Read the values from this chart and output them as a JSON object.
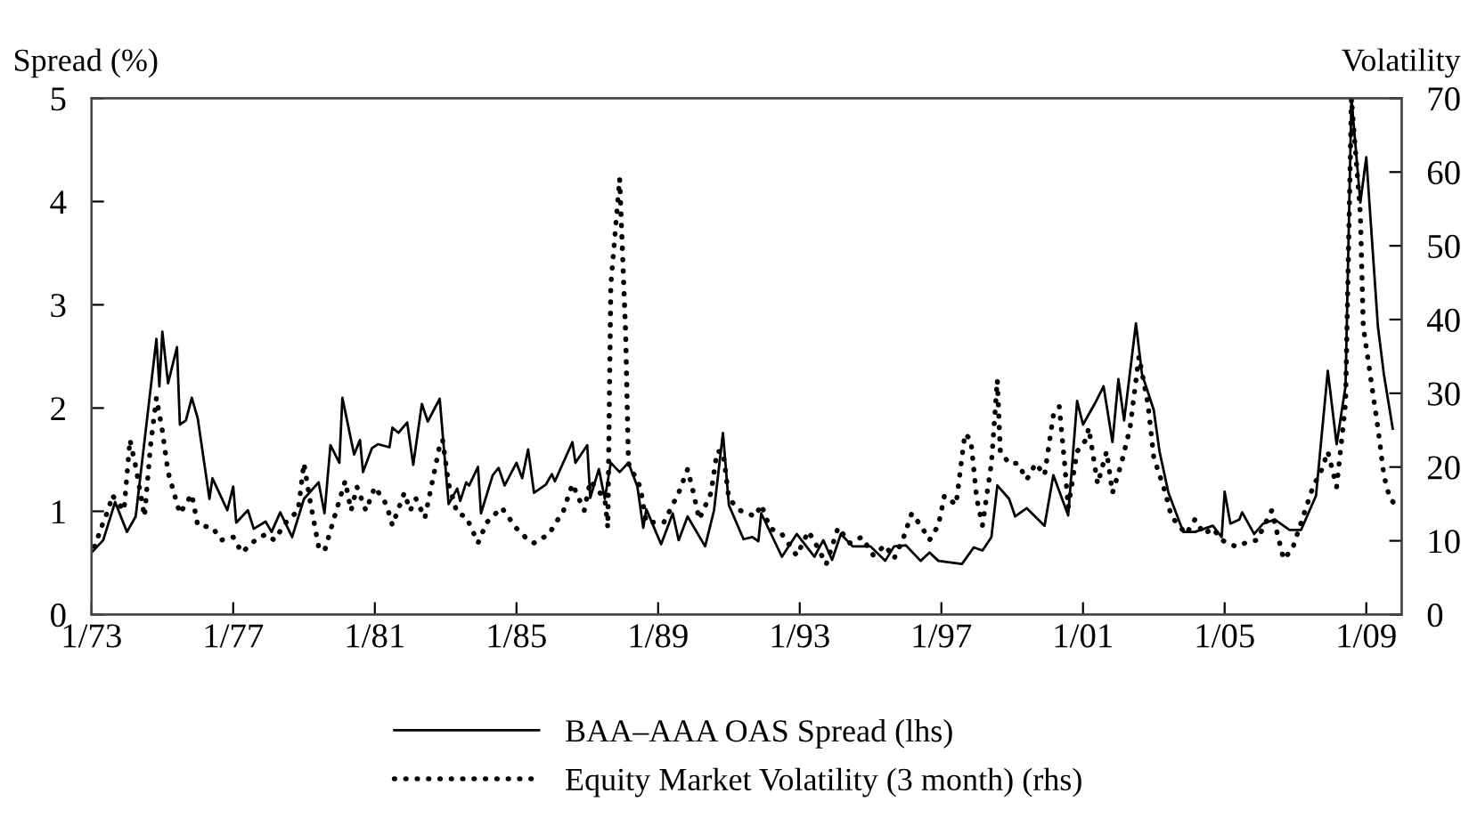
{
  "chart_data": {
    "type": "line",
    "ylabel": "Spread (%)",
    "y2label": "Volatility",
    "xlim": [
      "1973-01",
      "2010-01"
    ],
    "xticks": [
      {
        "value": "1973-01",
        "label": "1/73"
      },
      {
        "value": "1977-01",
        "label": "1/77"
      },
      {
        "value": "1981-01",
        "label": "1/81"
      },
      {
        "value": "1985-01",
        "label": "1/85"
      },
      {
        "value": "1989-01",
        "label": "1/89"
      },
      {
        "value": "1993-01",
        "label": "1/93"
      },
      {
        "value": "1997-01",
        "label": "1/97"
      },
      {
        "value": "2001-01",
        "label": "1/01"
      },
      {
        "value": "2005-01",
        "label": "1/05"
      },
      {
        "value": "2009-01",
        "label": "1/09"
      }
    ],
    "ylim": [
      0,
      5
    ],
    "yticks": [
      0,
      1,
      2,
      3,
      4,
      5
    ],
    "y2lim": [
      0,
      70
    ],
    "y2ticks": [
      0,
      10,
      20,
      30,
      40,
      50,
      60,
      70
    ],
    "grid": false,
    "legend": "bottom",
    "series": [
      {
        "name": "BAA–AAA OAS Spread (lhs)",
        "color": "#000000",
        "line_style": "solid",
        "x": [
          "1973-01",
          "1973-05",
          "1973-09",
          "1974-01",
          "1974-04",
          "1974-11",
          "1974-12",
          "1975-01",
          "1975-03",
          "1975-06",
          "1975-07",
          "1975-09",
          "1975-11",
          "1976-01",
          "1976-05",
          "1976-06",
          "1976-11",
          "1977-01",
          "1977-02",
          "1977-06",
          "1977-08",
          "1977-12",
          "1978-02",
          "1978-05",
          "1978-09",
          "1979-01",
          "1979-06",
          "1979-08",
          "1979-10",
          "1980-01",
          "1980-02",
          "1980-06",
          "1980-08",
          "1980-09",
          "1980-12",
          "1981-02",
          "1981-06",
          "1981-07",
          "1981-09",
          "1981-12",
          "1982-02",
          "1982-05",
          "1982-07",
          "1982-11",
          "1983-02",
          "1983-05",
          "1983-06",
          "1983-08",
          "1983-09",
          "1983-12",
          "1984-01",
          "1984-05",
          "1984-07",
          "1984-09",
          "1985-01",
          "1985-03",
          "1985-05",
          "1985-07",
          "1985-11",
          "1986-01",
          "1986-02",
          "1986-08",
          "1986-09",
          "1987-01",
          "1987-02",
          "1987-05",
          "1987-07",
          "1987-09",
          "1987-12",
          "1988-03",
          "1988-06",
          "1988-08",
          "1988-09",
          "1989-02",
          "1989-06",
          "1989-08",
          "1989-11",
          "1990-05",
          "1990-08",
          "1990-11",
          "1991-01",
          "1991-06",
          "1991-09",
          "1991-11",
          "1991-12",
          "1992-07",
          "1992-12",
          "1993-06",
          "1993-09",
          "1993-12",
          "1994-03",
          "1994-07",
          "1995-01",
          "1995-06",
          "1995-09",
          "1996-01",
          "1996-06",
          "1996-09",
          "1996-12",
          "1997-08",
          "1997-12",
          "1998-03",
          "1998-06",
          "1998-08",
          "1998-12",
          "1999-02",
          "1999-06",
          "1999-12",
          "2000-03",
          "2000-08",
          "2000-11",
          "2001-01",
          "2001-05",
          "2001-08",
          "2001-11",
          "2002-01",
          "2002-03",
          "2002-07",
          "2002-09",
          "2003-01",
          "2003-03",
          "2003-06",
          "2003-11",
          "2004-03",
          "2004-09",
          "2004-12",
          "2005-01",
          "2005-03",
          "2005-06",
          "2005-07",
          "2005-11",
          "2006-02",
          "2006-06",
          "2006-11",
          "2007-03",
          "2007-08",
          "2007-12",
          "2008-03",
          "2008-06",
          "2008-08",
          "2008-11",
          "2009-01",
          "2009-05",
          "2009-07",
          "2009-10"
        ],
        "values": [
          0.6,
          0.72,
          1.09,
          0.8,
          0.95,
          2.67,
          2.21,
          2.74,
          2.24,
          2.59,
          1.84,
          1.88,
          2.1,
          1.9,
          1.12,
          1.32,
          1.01,
          1.24,
          0.89,
          1.01,
          0.83,
          0.9,
          0.8,
          0.99,
          0.75,
          1.12,
          1.28,
          0.98,
          1.64,
          1.47,
          2.1,
          1.55,
          1.69,
          1.38,
          1.61,
          1.65,
          1.62,
          1.81,
          1.76,
          1.86,
          1.45,
          2.04,
          1.87,
          2.09,
          1.07,
          1.22,
          1.1,
          1.28,
          1.25,
          1.43,
          0.98,
          1.35,
          1.42,
          1.25,
          1.47,
          1.32,
          1.6,
          1.18,
          1.26,
          1.36,
          1.29,
          1.67,
          1.47,
          1.64,
          1.13,
          1.41,
          1.12,
          1.47,
          1.38,
          1.47,
          1.24,
          0.84,
          1.02,
          0.68,
          0.98,
          0.72,
          0.95,
          0.66,
          1.01,
          1.76,
          1.06,
          0.73,
          0.75,
          0.71,
          0.98,
          0.56,
          0.78,
          0.56,
          0.72,
          0.53,
          0.78,
          0.66,
          0.66,
          0.52,
          0.66,
          0.67,
          0.52,
          0.6,
          0.52,
          0.49,
          0.65,
          0.62,
          0.75,
          1.25,
          1.12,
          0.95,
          1.03,
          0.86,
          1.35,
          0.96,
          2.07,
          1.84,
          2.04,
          2.21,
          1.67,
          2.28,
          1.88,
          2.82,
          2.33,
          1.98,
          1.58,
          1.18,
          0.8,
          0.8,
          0.86,
          0.75,
          1.19,
          0.88,
          0.92,
          0.99,
          0.78,
          0.88,
          0.92,
          0.82,
          0.82,
          1.15,
          2.36,
          1.65,
          2.21,
          5.0,
          3.99,
          4.43,
          2.79,
          2.33,
          1.8
        ]
      },
      {
        "name": "Equity Market Volatility (3 month) (rhs)",
        "color": "#000000",
        "line_style": "dotted",
        "axis": "y2",
        "x": [
          "1973-02",
          "1973-05",
          "1973-07",
          "1973-08",
          "1973-12",
          "1974-02",
          "1974-04",
          "1974-07",
          "1974-09",
          "1974-11",
          "1975-01",
          "1975-03",
          "1975-07",
          "1975-11",
          "1976-01",
          "1976-06",
          "1976-09",
          "1977-01",
          "1977-04",
          "1977-08",
          "1977-12",
          "1978-03",
          "1978-07",
          "1978-11",
          "1979-01",
          "1979-03",
          "1979-06",
          "1979-08",
          "1979-12",
          "1980-03",
          "1980-05",
          "1980-07",
          "1980-10",
          "1981-01",
          "1981-05",
          "1981-07",
          "1981-11",
          "1982-01",
          "1982-03",
          "1982-06",
          "1982-11",
          "1982-12",
          "1983-02",
          "1983-05",
          "1983-08",
          "1983-12",
          "1984-03",
          "1984-08",
          "1985-01",
          "1985-05",
          "1985-07",
          "1985-12",
          "1986-05",
          "1986-08",
          "1986-12",
          "1987-02",
          "1987-07",
          "1987-08",
          "1987-09",
          "1987-12",
          "1988-02",
          "1988-03",
          "1988-07",
          "1988-09",
          "1989-03",
          "1989-06",
          "1989-08",
          "1989-11",
          "1990-01",
          "1990-03",
          "1990-07",
          "1990-09",
          "1990-11",
          "1991-01",
          "1991-05",
          "1991-10",
          "1991-12",
          "1992-03",
          "1992-07",
          "1992-12",
          "1993-04",
          "1993-07",
          "1993-10",
          "1994-02",
          "1994-06",
          "1994-10",
          "1995-02",
          "1995-06",
          "1995-09",
          "1995-12",
          "1996-03",
          "1996-06",
          "1996-09",
          "1996-12",
          "1997-02",
          "1997-06",
          "1997-09",
          "1997-11",
          "1998-01",
          "1998-03",
          "1998-06",
          "1998-08",
          "1998-09",
          "1998-12",
          "1999-03",
          "1999-06",
          "1999-09",
          "1999-12",
          "2000-03",
          "2000-05",
          "2000-07",
          "2000-08",
          "2000-11",
          "2001-02",
          "2001-03",
          "2001-06",
          "2001-09",
          "2001-11",
          "2002-02",
          "2002-05",
          "2002-08",
          "2002-11",
          "2003-01",
          "2003-05",
          "2003-07",
          "2003-12",
          "2004-03",
          "2004-06",
          "2004-09",
          "2004-12",
          "2005-05",
          "2005-08",
          "2005-12",
          "2006-05",
          "2006-09",
          "2006-12",
          "2007-03",
          "2007-07",
          "2007-10",
          "2007-12",
          "2008-03",
          "2008-06",
          "2008-08",
          "2008-11",
          "2008-12",
          "2009-02",
          "2009-05",
          "2009-07",
          "2009-09",
          "2009-11"
        ],
        "values": [
          9.2,
          12.5,
          14.5,
          16.2,
          14.1,
          23.7,
          20.1,
          13.3,
          22.9,
          29.4,
          24.9,
          19.3,
          13.7,
          16.3,
          12.1,
          11.8,
          10.1,
          10.5,
          8.4,
          9.9,
          10.9,
          10.1,
          12.5,
          14.1,
          20.5,
          15.7,
          9.2,
          8.6,
          14.1,
          18.1,
          14.1,
          17.3,
          14.1,
          17.3,
          14.9,
          12.1,
          16.5,
          14.1,
          15.7,
          13.1,
          22.9,
          23.7,
          17.7,
          13.7,
          13.3,
          9.7,
          12.5,
          14.5,
          11.7,
          10.1,
          9.7,
          10.9,
          14.1,
          17.7,
          14.1,
          18.1,
          15.7,
          11.8,
          44.7,
          59.1,
          38.2,
          20.5,
          17.3,
          12.5,
          12.5,
          14.9,
          16.5,
          19.7,
          16.5,
          12.9,
          16.5,
          22.1,
          22.1,
          15.7,
          14.1,
          13.3,
          14.9,
          11.7,
          10.9,
          8.0,
          11.3,
          9.2,
          6.8,
          11.8,
          9.7,
          10.5,
          8.0,
          9.4,
          7.6,
          10.2,
          13.7,
          12.1,
          10.1,
          12.1,
          16.1,
          14.9,
          24.5,
          23.7,
          15.7,
          12.1,
          20.5,
          31.8,
          22.1,
          20.5,
          20.5,
          18.3,
          20.5,
          18.9,
          27.0,
          28.2,
          19.7,
          14.5,
          22.1,
          23.7,
          25.3,
          17.7,
          22.1,
          16.5,
          20.5,
          25.3,
          35.0,
          28.6,
          21.3,
          16.5,
          13.3,
          10.9,
          12.9,
          10.9,
          11.7,
          10.1,
          9.2,
          9.7,
          10.1,
          14.1,
          7.5,
          8.9,
          12.5,
          17.3,
          19.7,
          22.1,
          17.3,
          28.6,
          70.0,
          54.3,
          39.0,
          33.4,
          25.3,
          18.9,
          15.7,
          14.9
        ]
      }
    ]
  }
}
